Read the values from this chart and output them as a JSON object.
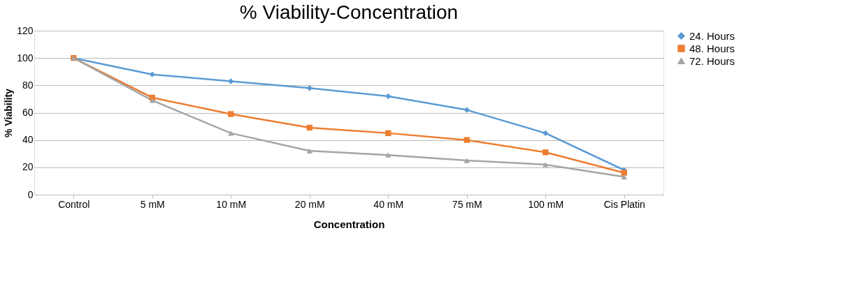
{
  "chart_data": {
    "type": "line",
    "title": "% Viability-Concentration",
    "xlabel": "Concentration",
    "ylabel": "% Viability",
    "categories": [
      "Control",
      "5 mM",
      "10 mM",
      "20 mM",
      "40 mM",
      "75 mM",
      "100 mM",
      "Cis Platin"
    ],
    "series": [
      {
        "name": "24. Hours",
        "color": "#5b9bd5",
        "marker": "diamond",
        "values": [
          100,
          88,
          83,
          78,
          72,
          62,
          45,
          18
        ]
      },
      {
        "name": "48. Hours",
        "color": "#ed7d31",
        "marker": "square",
        "values": [
          100,
          71,
          59,
          49,
          45,
          40,
          31,
          16
        ]
      },
      {
        "name": "72. Hours",
        "color": "#a5a5a5",
        "marker": "triangle",
        "values": [
          100,
          69,
          45,
          32,
          29,
          25,
          22,
          13
        ]
      }
    ],
    "ylim": [
      0,
      120
    ],
    "yticks": [
      0,
      20,
      40,
      60,
      80,
      100,
      120
    ],
    "grid": "y",
    "legend": "right",
    "line_style": "solid"
  }
}
